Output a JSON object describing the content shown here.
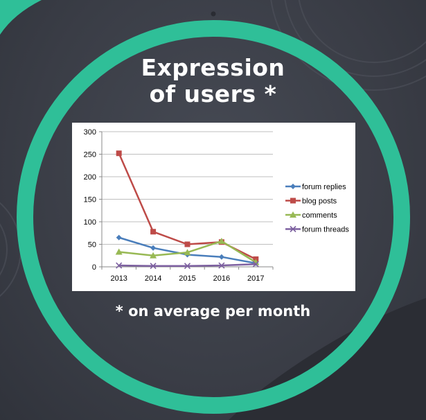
{
  "headline": {
    "line1": "Expression",
    "line2": "of users *"
  },
  "footnote": "* on average per month",
  "colors": {
    "ring": "#2fbf98",
    "background": "#3a3d46"
  },
  "chart_data": {
    "type": "line",
    "title": "",
    "xlabel": "",
    "ylabel": "",
    "categories": [
      "2013",
      "2014",
      "2015",
      "2016",
      "2017"
    ],
    "ylim": [
      0,
      300
    ],
    "yticks": [
      0,
      50,
      100,
      150,
      200,
      250,
      300
    ],
    "grid": true,
    "legend": "right",
    "series": [
      {
        "name": "forum replies",
        "values": [
          65,
          42,
          27,
          22,
          8
        ],
        "color": "#4a7ebb",
        "marker": "diamond"
      },
      {
        "name": "blog posts",
        "values": [
          252,
          78,
          50,
          55,
          17
        ],
        "color": "#be4b48",
        "marker": "square"
      },
      {
        "name": "comments",
        "values": [
          33,
          25,
          32,
          57,
          10
        ],
        "color": "#98b954",
        "marker": "triangle"
      },
      {
        "name": "forum threads",
        "values": [
          3,
          2,
          2,
          3,
          6
        ],
        "color": "#7d60a0",
        "marker": "x"
      }
    ]
  }
}
